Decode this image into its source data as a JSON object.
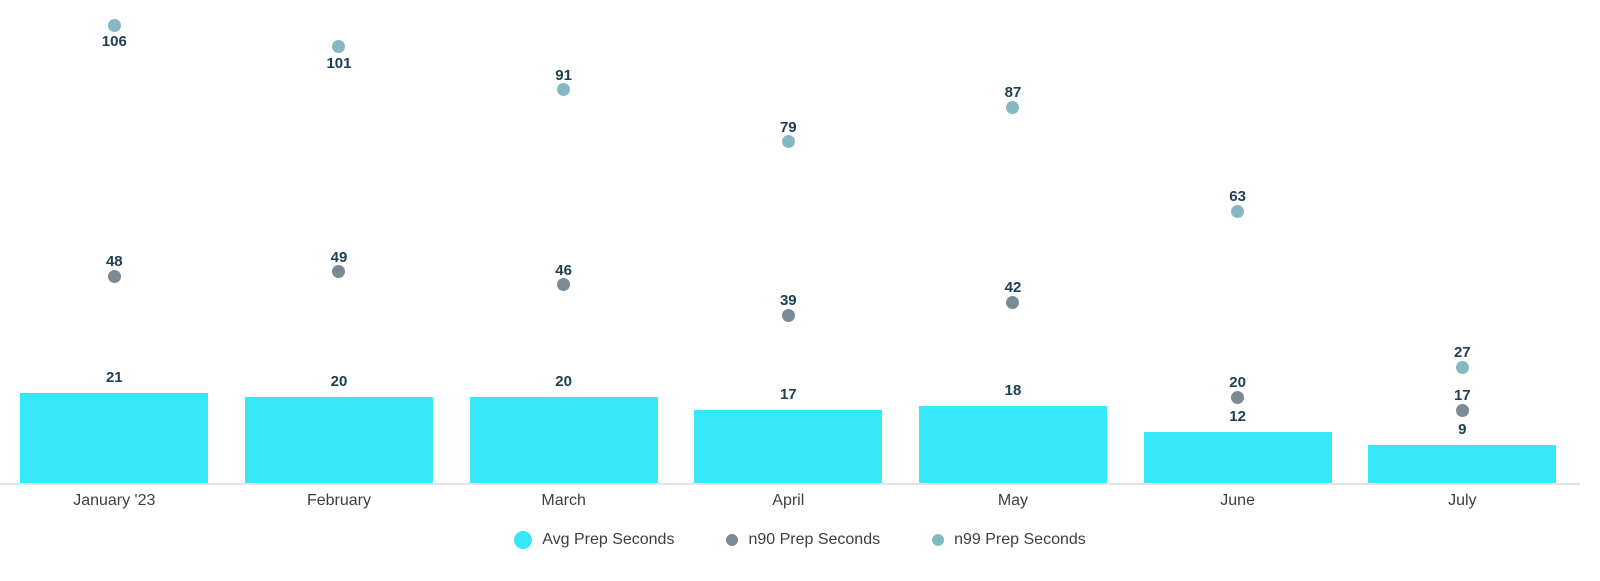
{
  "chart_data": {
    "type": "bar",
    "subtype": "bar-with-scatter-overlay",
    "title": "",
    "xlabel": "",
    "ylabel": "",
    "categories": [
      "January '23",
      "February",
      "March",
      "April",
      "May",
      "June",
      "July"
    ],
    "series": [
      {
        "name": "Avg Prep Seconds",
        "type": "bar",
        "color": "#36e7fa",
        "values": [
          21,
          20,
          20,
          17,
          18,
          12,
          9
        ]
      },
      {
        "name": "n90 Prep Seconds",
        "type": "scatter",
        "color": "#7c8a94",
        "values": [
          48,
          49,
          46,
          39,
          42,
          20,
          17
        ]
      },
      {
        "name": "n99 Prep Seconds",
        "type": "scatter",
        "color": "#86b8c2",
        "values": [
          106,
          101,
          91,
          79,
          87,
          63,
          27
        ]
      }
    ],
    "ylim": [
      0,
      112
    ],
    "grid": false,
    "y_axis_visible": false,
    "value_labels": true,
    "legend_position": "bottom"
  },
  "colors": {
    "background": "#ffffff",
    "bar_fill": "#36e7fa",
    "n90_dot": "#7c8a94",
    "n99_dot": "#86b8c2",
    "value_label_text": "#1d4054",
    "axis_text": "#3b3f42",
    "axis_line": "#e1e2ea"
  }
}
